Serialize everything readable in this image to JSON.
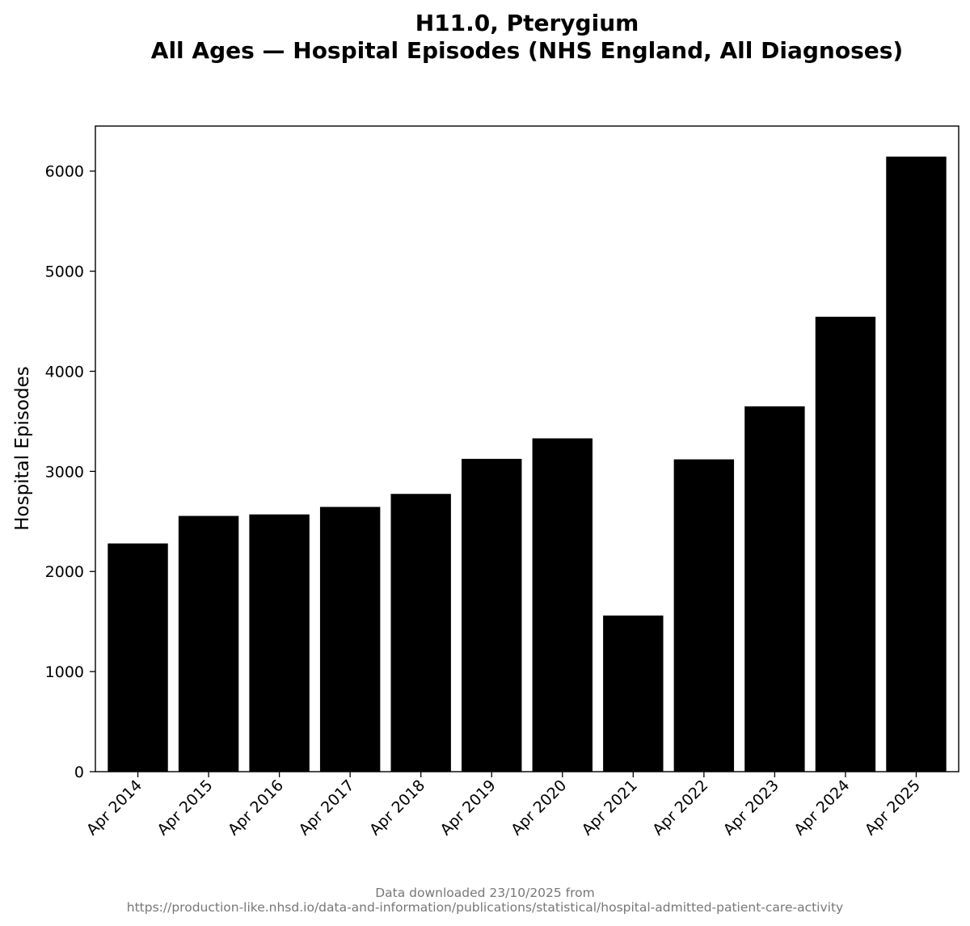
{
  "title_line1": "H11.0, Pterygium",
  "title_line2": "All Ages — Hospital Episodes (NHS England, All Diagnoses)",
  "footer_line1": "Data downloaded 23/10/2025 from",
  "footer_line2": "https://production-like.nhsd.io/data-and-information/publications/statistical/hospital-admitted-patient-care-activity",
  "chart_data": {
    "type": "bar",
    "title": "H11.0, Pterygium\nAll Ages — Hospital Episodes (NHS England, All Diagnoses)",
    "xlabel": "",
    "ylabel": "Hospital Episodes",
    "categories": [
      "Apr 2014",
      "Apr 2015",
      "Apr 2016",
      "Apr 2017",
      "Apr 2018",
      "Apr 2019",
      "Apr 2020",
      "Apr 2021",
      "Apr 2022",
      "Apr 2023",
      "Apr 2024",
      "Apr 2025"
    ],
    "values": [
      2280,
      2555,
      2570,
      2645,
      2775,
      3125,
      3330,
      1560,
      3120,
      3650,
      4545,
      6145
    ],
    "ylim": [
      0,
      6450
    ],
    "yticks": [
      0,
      1000,
      2000,
      3000,
      4000,
      5000,
      6000
    ],
    "bar_color": "#000000",
    "grid": false,
    "legend": "none"
  }
}
